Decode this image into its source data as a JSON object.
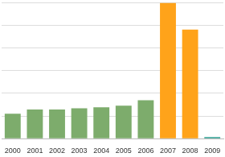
{
  "chart_data": {
    "type": "bar",
    "categories": [
      "2000",
      "2001",
      "2002",
      "2003",
      "2004",
      "2005",
      "2006",
      "2007",
      "2008",
      "2009"
    ],
    "values": [
      1.1,
      1.28,
      1.28,
      1.34,
      1.38,
      1.45,
      1.69,
      5.97,
      4.8,
      0.07
    ],
    "colors": [
      "#7dac6c",
      "#7dac6c",
      "#7dac6c",
      "#7dac6c",
      "#7dac6c",
      "#7dac6c",
      "#7dac6c",
      "#ffa31a",
      "#ffa31a",
      "#2a9d8f"
    ],
    "ylim": [
      0,
      6
    ],
    "yticks": [
      0,
      1,
      2,
      3,
      4,
      5,
      6
    ],
    "grid": true,
    "tick_labels": "x"
  }
}
